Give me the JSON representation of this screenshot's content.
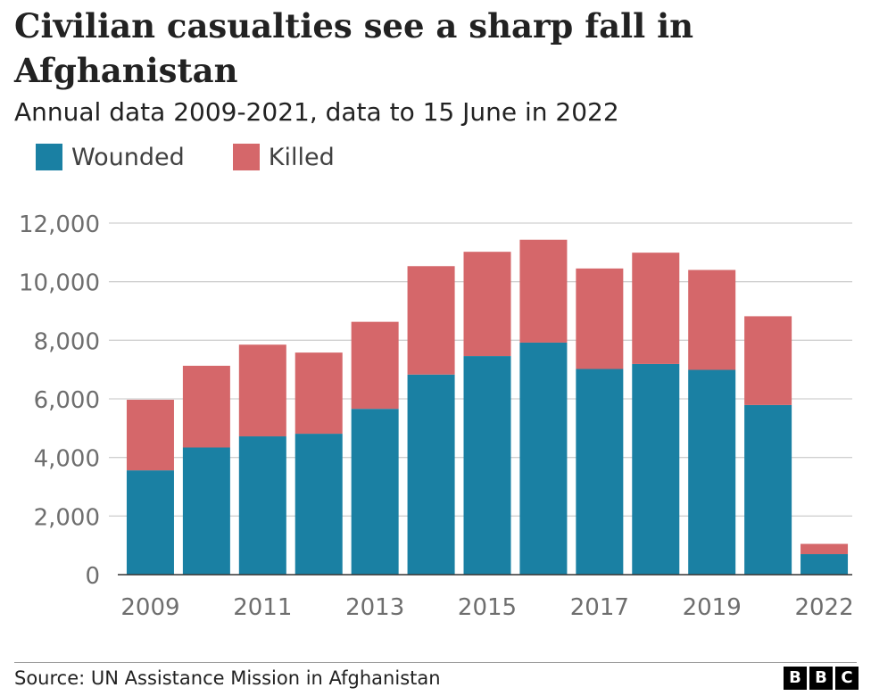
{
  "title": "Civilian casualties see a sharp fall in Afghanistan",
  "subtitle": "Annual data 2009-2021, data to 15 June in 2022",
  "legend": [
    {
      "label": "Wounded",
      "color": "#1a80a3"
    },
    {
      "label": "Killed",
      "color": "#d5676a"
    }
  ],
  "source": "Source: UN Assistance Mission in Afghanistan",
  "logo": {
    "letters": [
      "B",
      "B",
      "C"
    ]
  },
  "chart_data": {
    "type": "bar",
    "stacked": true,
    "categories": [
      "2009",
      "2010",
      "2011",
      "2012",
      "2013",
      "2014",
      "2015",
      "2016",
      "2017",
      "2018",
      "2019",
      "2020",
      "2022"
    ],
    "x_tick_labels": [
      "2009",
      "",
      "2011",
      "",
      "2013",
      "",
      "2015",
      "",
      "2017",
      "",
      "2019",
      "",
      "2022"
    ],
    "series": [
      {
        "name": "Wounded",
        "color": "#1a80a3",
        "values": [
          3560,
          4340,
          4720,
          4810,
          5660,
          6830,
          7460,
          7920,
          7020,
          7190,
          6990,
          5790,
          700
        ]
      },
      {
        "name": "Killed",
        "color": "#d5676a",
        "values": [
          2410,
          2790,
          3130,
          2770,
          2970,
          3700,
          3560,
          3510,
          3430,
          3800,
          3410,
          3030,
          350
        ]
      }
    ],
    "y_ticks": [
      0,
      2000,
      4000,
      6000,
      8000,
      10000,
      12000
    ],
    "y_tick_labels": [
      "0",
      "2,000",
      "4,000",
      "6,000",
      "8,000",
      "10,000",
      "12,000"
    ],
    "ylim": [
      0,
      12000
    ],
    "grid": true,
    "legend_position": "top-left"
  }
}
